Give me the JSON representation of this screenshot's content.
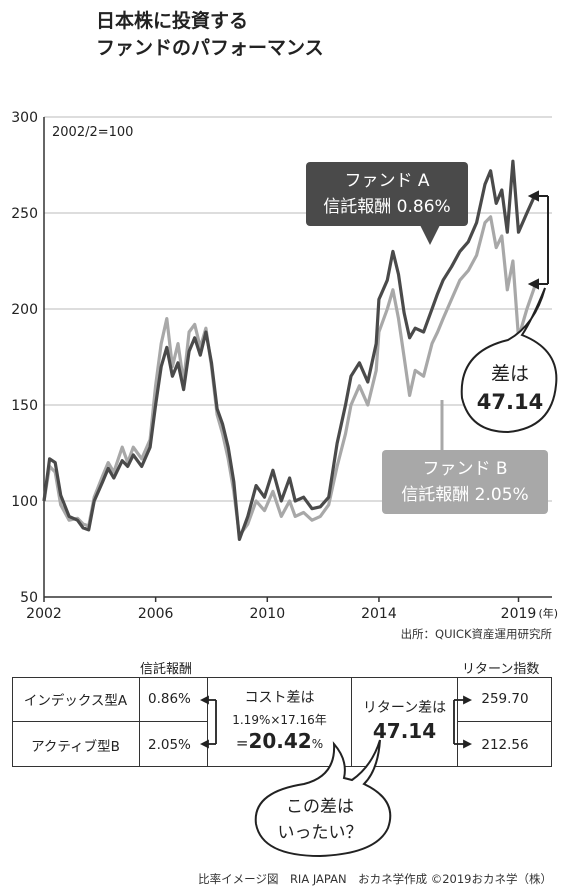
{
  "title_line1": "日本株に投資する",
  "title_line2": "ファンドのパフォーマンス",
  "chart_data": {
    "type": "line",
    "base_label": "2002/2=100",
    "ylim": [
      50,
      300
    ],
    "yticks": [
      50,
      100,
      150,
      200,
      250,
      300
    ],
    "xticks": [
      "2002",
      "2006",
      "2010",
      "2014",
      "2019"
    ],
    "x_unit": "(年)",
    "xlim": [
      2002,
      2020.2
    ],
    "series": [
      {
        "name": "ファンド A 信託報酬 0.86%",
        "color": "#4a4a4a",
        "points": [
          [
            2002,
            100
          ],
          [
            2002.2,
            122
          ],
          [
            2002.4,
            120
          ],
          [
            2002.6,
            103
          ],
          [
            2002.9,
            92
          ],
          [
            2003.2,
            90
          ],
          [
            2003.4,
            86
          ],
          [
            2003.6,
            85
          ],
          [
            2003.8,
            100
          ],
          [
            2004.1,
            110
          ],
          [
            2004.3,
            117
          ],
          [
            2004.5,
            112
          ],
          [
            2004.8,
            121
          ],
          [
            2005.0,
            118
          ],
          [
            2005.2,
            124
          ],
          [
            2005.5,
            118
          ],
          [
            2005.8,
            128
          ],
          [
            2006.0,
            150
          ],
          [
            2006.2,
            170
          ],
          [
            2006.4,
            180
          ],
          [
            2006.6,
            165
          ],
          [
            2006.8,
            172
          ],
          [
            2007.0,
            158
          ],
          [
            2007.2,
            178
          ],
          [
            2007.4,
            185
          ],
          [
            2007.6,
            176
          ],
          [
            2007.8,
            188
          ],
          [
            2008.0,
            172
          ],
          [
            2008.2,
            148
          ],
          [
            2008.4,
            140
          ],
          [
            2008.6,
            128
          ],
          [
            2008.8,
            110
          ],
          [
            2009.0,
            80
          ],
          [
            2009.3,
            92
          ],
          [
            2009.6,
            108
          ],
          [
            2009.9,
            102
          ],
          [
            2010.2,
            116
          ],
          [
            2010.5,
            100
          ],
          [
            2010.8,
            112
          ],
          [
            2011.0,
            100
          ],
          [
            2011.3,
            102
          ],
          [
            2011.6,
            96
          ],
          [
            2011.9,
            97
          ],
          [
            2012.2,
            102
          ],
          [
            2012.5,
            130
          ],
          [
            2012.8,
            150
          ],
          [
            2013.0,
            165
          ],
          [
            2013.3,
            172
          ],
          [
            2013.6,
            162
          ],
          [
            2013.9,
            182
          ],
          [
            2014.0,
            205
          ],
          [
            2014.3,
            215
          ],
          [
            2014.5,
            230
          ],
          [
            2014.7,
            218
          ],
          [
            2014.9,
            198
          ],
          [
            2015.1,
            185
          ],
          [
            2015.3,
            190
          ],
          [
            2015.6,
            188
          ],
          [
            2015.9,
            200
          ],
          [
            2016.1,
            208
          ],
          [
            2016.3,
            215
          ],
          [
            2016.6,
            222
          ],
          [
            2016.9,
            230
          ],
          [
            2017.2,
            235
          ],
          [
            2017.5,
            245
          ],
          [
            2017.8,
            265
          ],
          [
            2018.0,
            272
          ],
          [
            2018.2,
            255
          ],
          [
            2018.4,
            262
          ],
          [
            2018.6,
            240
          ],
          [
            2018.8,
            277
          ],
          [
            2019.0,
            240
          ],
          [
            2019.3,
            250
          ],
          [
            2019.6,
            259.7
          ]
        ]
      },
      {
        "name": "ファンド B 信託報酬 2.05%",
        "color": "#a8a8a8",
        "points": [
          [
            2002,
            100
          ],
          [
            2002.2,
            118
          ],
          [
            2002.4,
            115
          ],
          [
            2002.6,
            98
          ],
          [
            2002.9,
            90
          ],
          [
            2003.2,
            91
          ],
          [
            2003.4,
            88
          ],
          [
            2003.6,
            87
          ],
          [
            2003.8,
            102
          ],
          [
            2004.1,
            113
          ],
          [
            2004.3,
            120
          ],
          [
            2004.5,
            115
          ],
          [
            2004.8,
            128
          ],
          [
            2005.0,
            120
          ],
          [
            2005.2,
            128
          ],
          [
            2005.5,
            122
          ],
          [
            2005.8,
            132
          ],
          [
            2006.0,
            160
          ],
          [
            2006.2,
            182
          ],
          [
            2006.4,
            195
          ],
          [
            2006.6,
            170
          ],
          [
            2006.8,
            182
          ],
          [
            2007.0,
            162
          ],
          [
            2007.2,
            188
          ],
          [
            2007.4,
            192
          ],
          [
            2007.6,
            180
          ],
          [
            2007.8,
            190
          ],
          [
            2008.0,
            170
          ],
          [
            2008.2,
            145
          ],
          [
            2008.4,
            135
          ],
          [
            2008.6,
            122
          ],
          [
            2008.8,
            105
          ],
          [
            2009.0,
            82
          ],
          [
            2009.3,
            88
          ],
          [
            2009.6,
            100
          ],
          [
            2009.9,
            95
          ],
          [
            2010.2,
            105
          ],
          [
            2010.5,
            92
          ],
          [
            2010.8,
            100
          ],
          [
            2011.0,
            92
          ],
          [
            2011.3,
            94
          ],
          [
            2011.6,
            90
          ],
          [
            2011.9,
            92
          ],
          [
            2012.2,
            98
          ],
          [
            2012.5,
            118
          ],
          [
            2012.8,
            135
          ],
          [
            2013.0,
            150
          ],
          [
            2013.3,
            160
          ],
          [
            2013.6,
            150
          ],
          [
            2013.9,
            168
          ],
          [
            2014.0,
            188
          ],
          [
            2014.3,
            200
          ],
          [
            2014.5,
            210
          ],
          [
            2014.7,
            195
          ],
          [
            2014.9,
            175
          ],
          [
            2015.1,
            155
          ],
          [
            2015.3,
            168
          ],
          [
            2015.6,
            165
          ],
          [
            2015.9,
            182
          ],
          [
            2016.1,
            188
          ],
          [
            2016.3,
            195
          ],
          [
            2016.6,
            205
          ],
          [
            2016.9,
            215
          ],
          [
            2017.2,
            220
          ],
          [
            2017.5,
            228
          ],
          [
            2017.8,
            245
          ],
          [
            2018.0,
            248
          ],
          [
            2018.2,
            232
          ],
          [
            2018.4,
            238
          ],
          [
            2018.6,
            210
          ],
          [
            2018.8,
            225
          ],
          [
            2019.0,
            185
          ],
          [
            2019.3,
            200
          ],
          [
            2019.6,
            212.56
          ]
        ]
      }
    ]
  },
  "label_a_line1": "ファンド A",
  "label_a_line2": "信託報酬 0.86%",
  "label_b_line1": "ファンド B",
  "label_b_line2": "信託報酬 2.05%",
  "bubble_diff_line1": "差は",
  "bubble_diff_line2": "47.14",
  "source": "出所：QUICK資産運用研究所",
  "table": {
    "header_fee": "信託報酬",
    "header_return": "リターン指数",
    "row1_name": "インデックス型A",
    "row1_fee": "0.86%",
    "row2_name": "アクティブ型B",
    "row2_fee": "2.05%",
    "cost_title": "コスト差は",
    "cost_formula": "1.19%×17.16年",
    "cost_eq": "=",
    "cost_value": "20.42",
    "cost_pct": "%",
    "return_title": "リターン差は",
    "return_value": "47.14",
    "return_a": "259.70",
    "return_b": "212.56"
  },
  "bubble_q_line1": "この差は",
  "bubble_q_line2": "いったい？",
  "footer": "比率イメージ図　RIA JAPAN　おカネ学作成 ©2019おカネ学（株）"
}
